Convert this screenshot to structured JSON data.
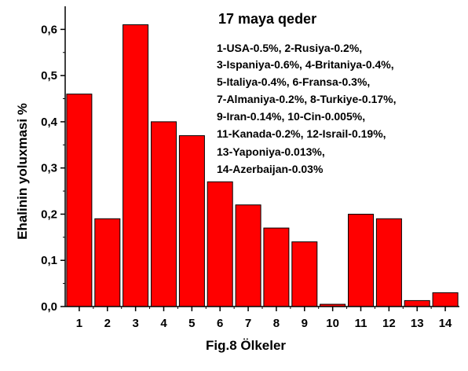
{
  "chart_data": {
    "type": "bar",
    "title": "17 maya qeder",
    "xlabel": "Fig.8      Ölkeler",
    "ylabel": "Ehalinin yoluxmasi %",
    "categories": [
      "1",
      "2",
      "3",
      "4",
      "5",
      "6",
      "7",
      "8",
      "9",
      "10",
      "11",
      "12",
      "13",
      "14"
    ],
    "values": [
      0.46,
      0.19,
      0.61,
      0.4,
      0.37,
      0.27,
      0.22,
      0.17,
      0.14,
      0.005,
      0.2,
      0.19,
      0.013,
      0.03
    ],
    "ylim": [
      0,
      0.65
    ],
    "y_ticks": [
      "0,0",
      "0,1",
      "0,2",
      "0,3",
      "0,4",
      "0,5",
      "0,6"
    ],
    "bar_color": "#ff0000",
    "grid": false,
    "annotation_lines": [
      "1-USA-0.5%, 2-Rusiya-0.2%,",
      "3-Ispaniya-0.6%, 4-Britaniya-0.4%,",
      "5-Italiya-0.4%, 6-Fransa-0.3%,",
      "7-Almaniya-0.2%, 8-Turkiye-0.17%,",
      "9-Iran-0.14%, 10-Cin-0.005%,",
      "11-Kanada-0.2%, 12-Israil-0.19%,",
      "13-Yaponiya-0.013%,",
      "14-Azerbaijan-0.03%"
    ]
  }
}
